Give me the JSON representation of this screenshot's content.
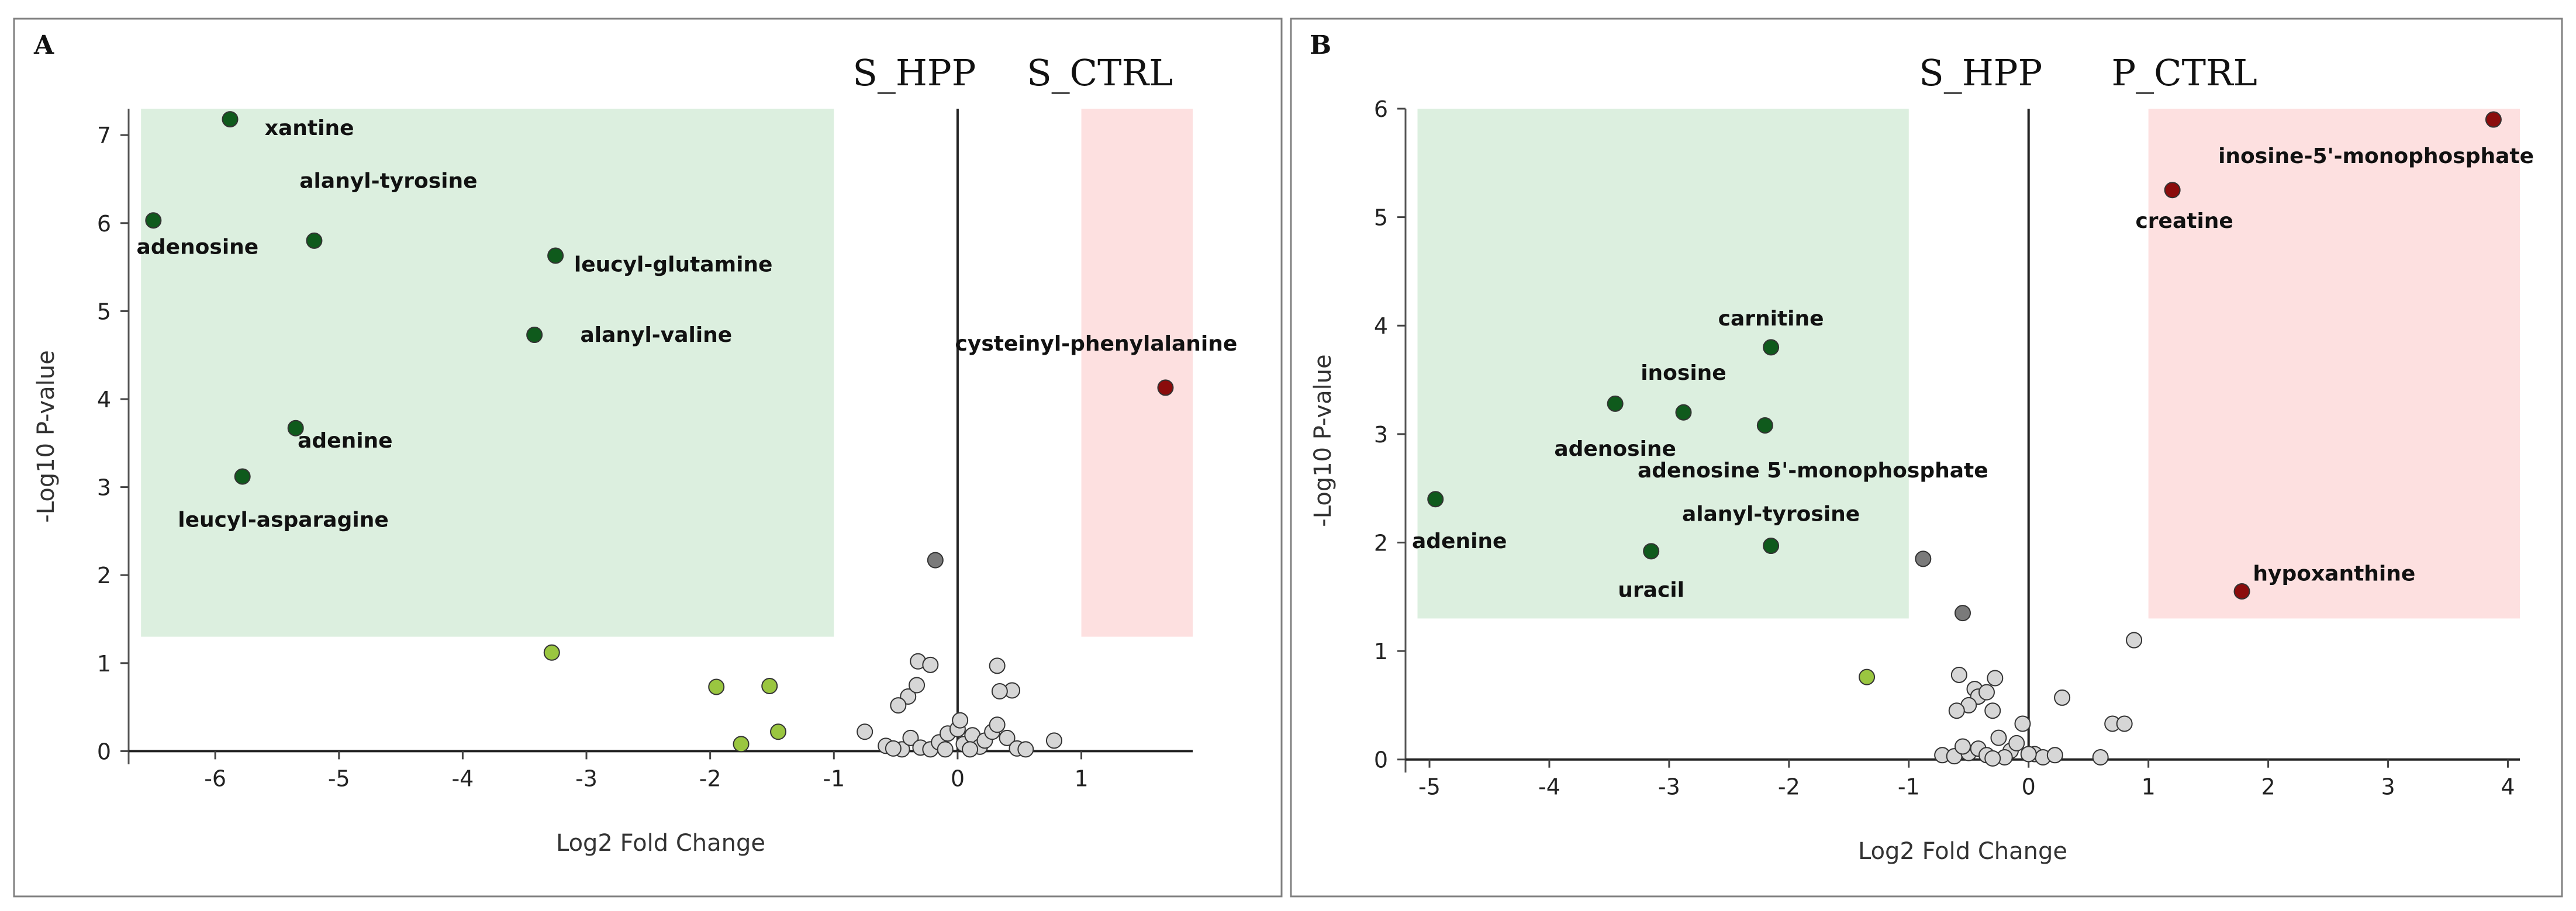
{
  "figure": {
    "colors": {
      "sig_down": "#0f5a1c",
      "sig_up": "#8b0c0c",
      "trend": "#9ac640",
      "ns_dark": "#7a7a7a",
      "ns": "#d6d6d6",
      "green_zone": "#dcefdf",
      "red_zone": "#fde0e0"
    }
  },
  "chart_data": [
    {
      "type": "scatter",
      "panel": "A",
      "xlabel": "Log2 Fold Change",
      "ylabel": "-Log10 P-value",
      "xlim": [
        -6.7,
        1.9
      ],
      "ylim": [
        -0.15,
        7.3
      ],
      "xticks": [
        -6,
        -5,
        -4,
        -3,
        -2,
        -1,
        0,
        1
      ],
      "yticks": [
        0,
        1,
        2,
        3,
        4,
        5,
        6,
        7
      ],
      "group_left": "S_HPP",
      "group_right": "S_CTRL",
      "group_left_x": -0.35,
      "group_right_x": 1.15,
      "zones": [
        {
          "kind": "down",
          "x": [
            -6.6,
            -1.0
          ],
          "y": [
            1.3,
            7.3
          ]
        },
        {
          "kind": "up",
          "x": [
            1.0,
            1.9
          ],
          "y": [
            1.3,
            7.3
          ]
        }
      ],
      "points": [
        {
          "x": -5.88,
          "y": 7.18,
          "cat": "sig_down",
          "label": "xantine",
          "lx": -5.6,
          "ly": 7.0,
          "anchor": "start"
        },
        {
          "x": -6.5,
          "y": 6.03,
          "cat": "sig_down",
          "label": "adenosine",
          "lx": -5.65,
          "ly": 5.65,
          "anchor": "end"
        },
        {
          "x": -5.2,
          "y": 5.8,
          "cat": "sig_down",
          "label": "alanyl-tyrosine",
          "lx": -4.6,
          "ly": 6.4,
          "anchor": "middle"
        },
        {
          "x": -3.25,
          "y": 5.63,
          "cat": "sig_down",
          "label": "leucyl-glutamine",
          "lx": -3.1,
          "ly": 5.45,
          "anchor": "start"
        },
        {
          "x": -3.42,
          "y": 4.73,
          "cat": "sig_down",
          "label": "alanyl-valine",
          "lx": -3.05,
          "ly": 4.65,
          "anchor": "start"
        },
        {
          "x": -5.35,
          "y": 3.67,
          "cat": "sig_down",
          "label": "adenine",
          "lx": -4.95,
          "ly": 3.45,
          "anchor": "middle"
        },
        {
          "x": -5.78,
          "y": 3.12,
          "cat": "sig_down",
          "label": "leucyl-asparagine",
          "lx": -5.45,
          "ly": 2.55,
          "anchor": "middle"
        },
        {
          "x": 1.68,
          "y": 4.13,
          "cat": "sig_up",
          "label": "cysteinyl-phenylalanine",
          "lx": 1.12,
          "ly": 4.55,
          "anchor": "middle"
        },
        {
          "x": -0.18,
          "y": 2.17,
          "cat": "ns_dark"
        },
        {
          "x": -3.28,
          "y": 1.12,
          "cat": "trend"
        },
        {
          "x": -1.95,
          "y": 0.73,
          "cat": "trend"
        },
        {
          "x": -1.52,
          "y": 0.74,
          "cat": "trend"
        },
        {
          "x": -1.45,
          "y": 0.22,
          "cat": "trend"
        },
        {
          "x": -1.75,
          "y": 0.08,
          "cat": "trend"
        },
        {
          "x": -0.32,
          "y": 1.02,
          "cat": "ns"
        },
        {
          "x": -0.22,
          "y": 0.98,
          "cat": "ns"
        },
        {
          "x": -0.4,
          "y": 0.62,
          "cat": "ns"
        },
        {
          "x": -0.48,
          "y": 0.52,
          "cat": "ns"
        },
        {
          "x": -0.33,
          "y": 0.75,
          "cat": "ns"
        },
        {
          "x": 0.32,
          "y": 0.97,
          "cat": "ns"
        },
        {
          "x": 0.44,
          "y": 0.69,
          "cat": "ns"
        },
        {
          "x": 0.34,
          "y": 0.68,
          "cat": "ns"
        },
        {
          "x": -0.75,
          "y": 0.22,
          "cat": "ns"
        },
        {
          "x": -0.58,
          "y": 0.06,
          "cat": "ns"
        },
        {
          "x": -0.45,
          "y": 0.02,
          "cat": "ns"
        },
        {
          "x": -0.38,
          "y": 0.15,
          "cat": "ns"
        },
        {
          "x": -0.3,
          "y": 0.04,
          "cat": "ns"
        },
        {
          "x": -0.22,
          "y": 0.02,
          "cat": "ns"
        },
        {
          "x": -0.15,
          "y": 0.1,
          "cat": "ns"
        },
        {
          "x": -0.08,
          "y": 0.2,
          "cat": "ns"
        },
        {
          "x": 0.0,
          "y": 0.25,
          "cat": "ns"
        },
        {
          "x": 0.05,
          "y": 0.08,
          "cat": "ns"
        },
        {
          "x": 0.12,
          "y": 0.18,
          "cat": "ns"
        },
        {
          "x": 0.18,
          "y": 0.05,
          "cat": "ns"
        },
        {
          "x": 0.22,
          "y": 0.12,
          "cat": "ns"
        },
        {
          "x": 0.28,
          "y": 0.22,
          "cat": "ns"
        },
        {
          "x": 0.32,
          "y": 0.3,
          "cat": "ns"
        },
        {
          "x": 0.4,
          "y": 0.15,
          "cat": "ns"
        },
        {
          "x": 0.48,
          "y": 0.03,
          "cat": "ns"
        },
        {
          "x": 0.55,
          "y": 0.02,
          "cat": "ns"
        },
        {
          "x": 0.78,
          "y": 0.12,
          "cat": "ns"
        },
        {
          "x": 0.02,
          "y": 0.35,
          "cat": "ns"
        },
        {
          "x": -0.52,
          "y": 0.03,
          "cat": "ns"
        },
        {
          "x": -0.1,
          "y": 0.02,
          "cat": "ns"
        },
        {
          "x": 0.1,
          "y": 0.02,
          "cat": "ns"
        }
      ]
    },
    {
      "type": "scatter",
      "panel": "B",
      "xlabel": "Log2 Fold Change",
      "ylabel": "-Log10 P-value",
      "xlim": [
        -5.2,
        4.1
      ],
      "ylim": [
        -0.12,
        6.0
      ],
      "xticks": [
        -5,
        -4,
        -3,
        -2,
        -1,
        0,
        1,
        2,
        3,
        4
      ],
      "yticks": [
        0,
        1,
        2,
        3,
        4,
        5,
        6
      ],
      "group_left": "S_HPP",
      "group_right": "P_CTRL",
      "group_left_x": -0.4,
      "group_right_x": 1.3,
      "zones": [
        {
          "kind": "down",
          "x": [
            -5.1,
            -1.0
          ],
          "y": [
            1.3,
            6.0
          ]
        },
        {
          "kind": "up",
          "x": [
            1.0,
            4.1
          ],
          "y": [
            1.3,
            6.0
          ]
        }
      ],
      "points": [
        {
          "x": 3.88,
          "y": 5.9,
          "cat": "sig_up",
          "label": "inosine-5'-monophosphate",
          "lx": 2.9,
          "ly": 5.5,
          "anchor": "middle"
        },
        {
          "x": 1.2,
          "y": 5.25,
          "cat": "sig_up",
          "label": "creatine",
          "lx": 1.3,
          "ly": 4.9,
          "anchor": "middle"
        },
        {
          "x": 1.78,
          "y": 1.55,
          "cat": "sig_up",
          "label": "hypoxanthine",
          "lx": 2.55,
          "ly": 1.65,
          "anchor": "middle"
        },
        {
          "x": -2.15,
          "y": 3.8,
          "cat": "sig_down",
          "label": "carnitine",
          "lx": -2.15,
          "ly": 4.0,
          "anchor": "middle"
        },
        {
          "x": -3.45,
          "y": 3.28,
          "cat": "sig_down",
          "label": "adenosine",
          "lx": -3.45,
          "ly": 2.8,
          "anchor": "middle"
        },
        {
          "x": -2.88,
          "y": 3.2,
          "cat": "sig_down",
          "label": "inosine",
          "lx": -2.88,
          "ly": 3.5,
          "anchor": "middle"
        },
        {
          "x": -2.2,
          "y": 3.08,
          "cat": "sig_down",
          "label": "adenosine 5'-monophosphate",
          "lx": -1.8,
          "ly": 2.6,
          "anchor": "middle"
        },
        {
          "x": -4.95,
          "y": 2.4,
          "cat": "sig_down",
          "label": "adenine",
          "lx": -4.75,
          "ly": 1.95,
          "anchor": "middle"
        },
        {
          "x": -3.15,
          "y": 1.92,
          "cat": "sig_down",
          "label": "uracil",
          "lx": -3.15,
          "ly": 1.5,
          "anchor": "middle"
        },
        {
          "x": -2.15,
          "y": 1.97,
          "cat": "sig_down",
          "label": "alanyl-tyrosine",
          "lx": -2.15,
          "ly": 2.2,
          "anchor": "middle"
        },
        {
          "x": -0.88,
          "y": 1.85,
          "cat": "ns_dark"
        },
        {
          "x": -0.55,
          "y": 1.35,
          "cat": "ns_dark"
        },
        {
          "x": -1.35,
          "y": 0.76,
          "cat": "trend"
        },
        {
          "x": 0.88,
          "y": 1.1,
          "cat": "ns"
        },
        {
          "x": -0.58,
          "y": 0.78,
          "cat": "ns"
        },
        {
          "x": -0.28,
          "y": 0.75,
          "cat": "ns"
        },
        {
          "x": -0.45,
          "y": 0.65,
          "cat": "ns"
        },
        {
          "x": -0.42,
          "y": 0.58,
          "cat": "ns"
        },
        {
          "x": -0.35,
          "y": 0.62,
          "cat": "ns"
        },
        {
          "x": -0.5,
          "y": 0.5,
          "cat": "ns"
        },
        {
          "x": -0.3,
          "y": 0.45,
          "cat": "ns"
        },
        {
          "x": 0.28,
          "y": 0.57,
          "cat": "ns"
        },
        {
          "x": 0.7,
          "y": 0.33,
          "cat": "ns"
        },
        {
          "x": 0.8,
          "y": 0.33,
          "cat": "ns"
        },
        {
          "x": -0.6,
          "y": 0.45,
          "cat": "ns"
        },
        {
          "x": -0.25,
          "y": 0.2,
          "cat": "ns"
        },
        {
          "x": -0.15,
          "y": 0.08,
          "cat": "ns"
        },
        {
          "x": -0.05,
          "y": 0.33,
          "cat": "ns"
        },
        {
          "x": 0.05,
          "y": 0.05,
          "cat": "ns"
        },
        {
          "x": 0.12,
          "y": 0.02,
          "cat": "ns"
        },
        {
          "x": -0.72,
          "y": 0.04,
          "cat": "ns"
        },
        {
          "x": -0.62,
          "y": 0.03,
          "cat": "ns"
        },
        {
          "x": -0.5,
          "y": 0.06,
          "cat": "ns"
        },
        {
          "x": -0.42,
          "y": 0.1,
          "cat": "ns"
        },
        {
          "x": -0.35,
          "y": 0.04,
          "cat": "ns"
        },
        {
          "x": -0.2,
          "y": 0.02,
          "cat": "ns"
        },
        {
          "x": -0.1,
          "y": 0.15,
          "cat": "ns"
        },
        {
          "x": 0.0,
          "y": 0.05,
          "cat": "ns"
        },
        {
          "x": 0.22,
          "y": 0.04,
          "cat": "ns"
        },
        {
          "x": 0.6,
          "y": 0.02,
          "cat": "ns"
        },
        {
          "x": -0.3,
          "y": 0.01,
          "cat": "ns"
        },
        {
          "x": -0.55,
          "y": 0.12,
          "cat": "ns"
        }
      ]
    }
  ]
}
